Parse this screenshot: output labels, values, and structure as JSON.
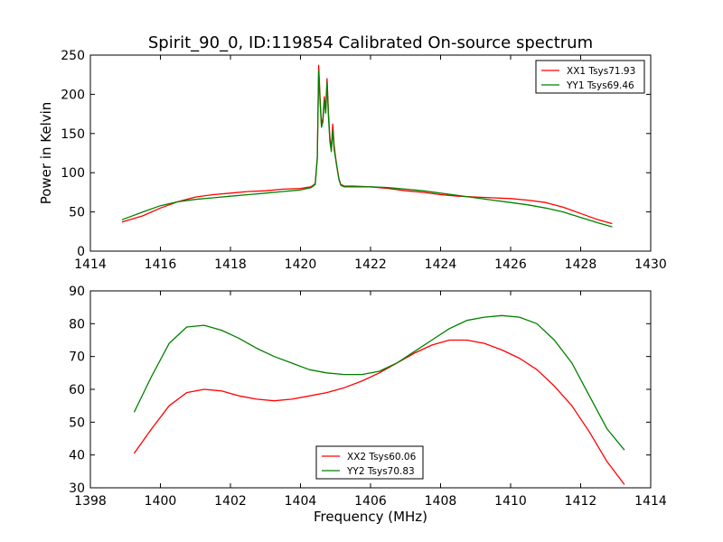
{
  "figure_title": "Spirit_90_0, ID:119854 Calibrated On-source spectrum",
  "colors": {
    "red": "#ff0000",
    "green": "#008000",
    "axis": "#000000"
  },
  "chart_data": [
    {
      "type": "line",
      "title": "",
      "xlabel": "",
      "ylabel": "Power in Kelvin",
      "xlim": [
        1414,
        1430
      ],
      "ylim": [
        0,
        250
      ],
      "xticks": [
        1414,
        1416,
        1418,
        1420,
        1422,
        1424,
        1426,
        1428,
        1430
      ],
      "yticks": [
        0,
        50,
        100,
        150,
        200,
        250
      ],
      "grid": false,
      "legend_position": "top-right",
      "series": [
        {
          "name": "XX1 Tsys71.93",
          "color": "#ff0000",
          "x": [
            1414.9,
            1415.5,
            1416.0,
            1416.5,
            1417.0,
            1417.5,
            1418.0,
            1418.5,
            1419.0,
            1419.5,
            1420.0,
            1420.3,
            1420.42,
            1420.48,
            1420.52,
            1420.56,
            1420.6,
            1420.64,
            1420.68,
            1420.72,
            1420.76,
            1420.8,
            1420.84,
            1420.88,
            1420.92,
            1420.96,
            1421.0,
            1421.05,
            1421.1,
            1421.15,
            1421.25,
            1421.5,
            1422.0,
            1422.5,
            1423.0,
            1423.5,
            1424.0,
            1424.5,
            1425.0,
            1425.5,
            1426.0,
            1426.5,
            1427.0,
            1427.5,
            1428.0,
            1428.5,
            1428.9
          ],
          "y": [
            37,
            45,
            55,
            63,
            69,
            72,
            74,
            76,
            77,
            79,
            80,
            82,
            86,
            120,
            237,
            195,
            160,
            170,
            197,
            180,
            220,
            175,
            145,
            130,
            162,
            135,
            120,
            105,
            92,
            85,
            83,
            83,
            82,
            80,
            77,
            75,
            72,
            70,
            69,
            68,
            67,
            65,
            62,
            56,
            48,
            40,
            35
          ]
        },
        {
          "name": "YY1 Tsys69.46",
          "color": "#008000",
          "x": [
            1414.9,
            1415.5,
            1416.0,
            1416.5,
            1417.0,
            1417.5,
            1418.0,
            1418.5,
            1419.0,
            1419.5,
            1420.0,
            1420.3,
            1420.42,
            1420.48,
            1420.52,
            1420.56,
            1420.6,
            1420.64,
            1420.68,
            1420.72,
            1420.76,
            1420.8,
            1420.84,
            1420.88,
            1420.92,
            1420.96,
            1421.0,
            1421.05,
            1421.1,
            1421.15,
            1421.25,
            1421.5,
            1422.0,
            1422.5,
            1423.0,
            1423.5,
            1424.0,
            1424.5,
            1425.0,
            1425.5,
            1426.0,
            1426.5,
            1427.0,
            1427.5,
            1428.0,
            1428.5,
            1428.9
          ],
          "y": [
            40,
            50,
            58,
            63,
            66,
            68,
            70,
            72,
            74,
            76,
            78,
            81,
            85,
            118,
            230,
            190,
            158,
            165,
            192,
            176,
            215,
            170,
            140,
            127,
            155,
            130,
            118,
            104,
            91,
            84,
            82,
            82,
            82,
            81,
            79,
            77,
            74,
            71,
            68,
            65,
            62,
            59,
            55,
            50,
            43,
            36,
            31
          ]
        }
      ]
    },
    {
      "type": "line",
      "title": "",
      "xlabel": "Frequency (MHz)",
      "ylabel": "",
      "xlim": [
        1398,
        1414
      ],
      "ylim": [
        30,
        90
      ],
      "xticks": [
        1398,
        1400,
        1402,
        1404,
        1406,
        1408,
        1410,
        1412,
        1414
      ],
      "yticks": [
        30,
        40,
        50,
        60,
        70,
        80,
        90
      ],
      "grid": false,
      "legend_position": "bottom-center",
      "series": [
        {
          "name": "XX2 Tsys60.06",
          "color": "#ff0000",
          "x": [
            1399.25,
            1399.75,
            1400.25,
            1400.75,
            1401.25,
            1401.75,
            1402.25,
            1402.75,
            1403.25,
            1403.75,
            1404.25,
            1404.75,
            1405.25,
            1405.75,
            1406.25,
            1406.75,
            1407.25,
            1407.75,
            1408.25,
            1408.75,
            1409.25,
            1409.75,
            1410.25,
            1410.75,
            1411.25,
            1411.75,
            1412.25,
            1412.75,
            1413.25
          ],
          "y": [
            40.5,
            48,
            55,
            59,
            60,
            59.5,
            58,
            57,
            56.5,
            57,
            58,
            59,
            60.5,
            62.5,
            65,
            68,
            71,
            73.5,
            75,
            75,
            74,
            72,
            69.5,
            66,
            61,
            55,
            47,
            38,
            31
          ]
        },
        {
          "name": "YY2 Tsys70.83",
          "color": "#008000",
          "x": [
            1399.25,
            1399.75,
            1400.25,
            1400.75,
            1401.25,
            1401.75,
            1402.25,
            1402.75,
            1403.25,
            1403.75,
            1404.25,
            1404.75,
            1405.25,
            1405.75,
            1406.25,
            1406.75,
            1407.25,
            1407.75,
            1408.25,
            1408.75,
            1409.25,
            1409.75,
            1410.25,
            1410.75,
            1411.25,
            1411.75,
            1412.25,
            1412.75,
            1413.25
          ],
          "y": [
            53,
            64,
            74,
            79,
            79.5,
            78,
            75.5,
            72.5,
            70,
            68,
            66,
            65,
            64.5,
            64.5,
            65.5,
            68,
            71.5,
            75,
            78.5,
            81,
            82,
            82.5,
            82,
            80,
            75,
            68,
            58,
            48,
            41.5
          ]
        }
      ]
    }
  ]
}
